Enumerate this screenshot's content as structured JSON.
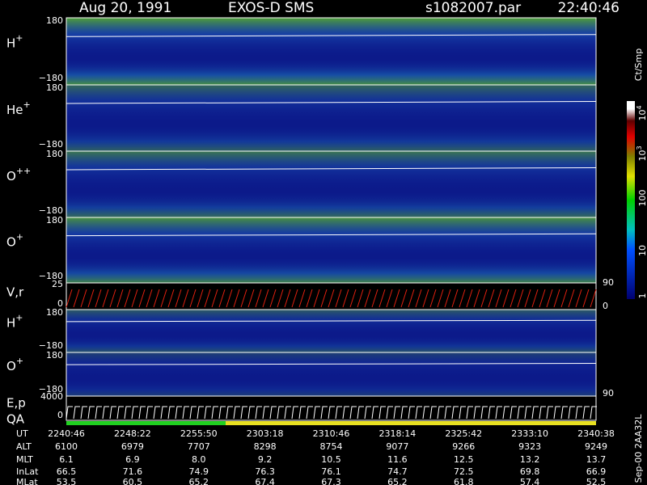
{
  "header": {
    "date": "Aug 20, 1991",
    "instrument": "EXOS-D SMS",
    "file": "s1082007.par",
    "time": "22:40:46"
  },
  "panels": [
    {
      "label": "H",
      "charge": "+",
      "top_tick": "180",
      "bottom_tick": "−180"
    },
    {
      "label": "He",
      "charge": "+",
      "top_tick": "180",
      "bottom_tick": "−180"
    },
    {
      "label": "O",
      "charge": "++",
      "top_tick": "180",
      "bottom_tick": "−180"
    },
    {
      "label": "O",
      "charge": "+",
      "top_tick": "180",
      "bottom_tick": "−180"
    }
  ],
  "vr_panel": {
    "label": "V,r",
    "left_top": "25",
    "left_bottom": "0",
    "right_top": "90",
    "right_bottom": "0"
  },
  "lower_panels": [
    {
      "label": "H",
      "charge": "+",
      "top_tick": "180",
      "bottom_tick": "−180"
    },
    {
      "label": "O",
      "charge": "+",
      "top_tick": "180",
      "bottom_tick": "−180"
    }
  ],
  "ep_panel": {
    "label": "E,p",
    "left_top": "4000",
    "left_bottom": "0",
    "right_top": "90"
  },
  "qa_label": "QA",
  "colorbar": {
    "unit": "Ct/Smp",
    "ticks": [
      {
        "base": "10",
        "exp": "4"
      },
      {
        "base": "10",
        "exp": "3"
      },
      {
        "base": "100",
        "exp": ""
      },
      {
        "base": "10",
        "exp": ""
      },
      {
        "base": "1",
        "exp": ""
      }
    ]
  },
  "footer": {
    "rows": [
      {
        "label": "UT",
        "values": [
          "2240:46",
          "2248:22",
          "2255:50",
          "2303:18",
          "2310:46",
          "2318:14",
          "2325:42",
          "2333:10",
          "2340:38"
        ]
      },
      {
        "label": "ALT",
        "values": [
          "6100",
          "6979",
          "7707",
          "8298",
          "8754",
          "9077",
          "9266",
          "9323",
          "9249"
        ]
      },
      {
        "label": "MLT",
        "values": [
          "6.1",
          "6.9",
          "8.0",
          "9.2",
          "10.5",
          "11.6",
          "12.5",
          "13.2",
          "13.7"
        ]
      },
      {
        "label": "InLat",
        "values": [
          "66.5",
          "71.6",
          "74.9",
          "76.3",
          "76.1",
          "74.7",
          "72.5",
          "69.8",
          "66.9"
        ]
      },
      {
        "label": "MLat",
        "values": [
          "53.5",
          "60.5",
          "65.2",
          "67.4",
          "67.3",
          "65.2",
          "61.8",
          "57.4",
          "52.5"
        ]
      }
    ],
    "stamp": "Sep-00 2AA32L"
  }
}
